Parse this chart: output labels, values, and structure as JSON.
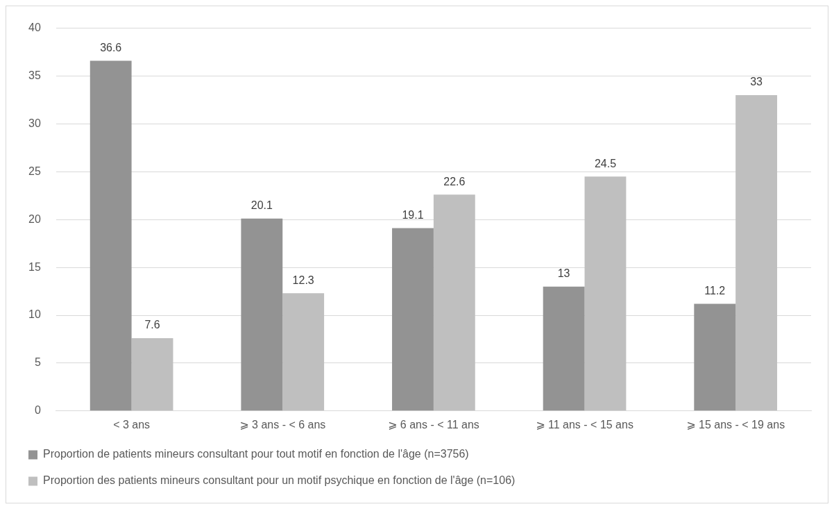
{
  "chart_data": {
    "type": "bar",
    "categories": [
      "< 3 ans",
      "⩾ 3 ans - < 6 ans",
      "⩾ 6 ans - < 11 ans",
      "⩾ 11 ans - < 15 ans",
      "⩾ 15 ans - < 19 ans"
    ],
    "series": [
      {
        "name": "Proportion de patients mineurs consultant pour tout motif en fonction de l'âge (n=3756)",
        "color": "#939393",
        "values": [
          36.6,
          20.1,
          19.1,
          13,
          11.2
        ]
      },
      {
        "name": "Proportion des patients mineurs consultant pour un motif psychique en fonction de l'âge (n=106)",
        "color": "#bfbfbf",
        "values": [
          7.6,
          12.3,
          22.6,
          24.5,
          33
        ]
      }
    ],
    "ylim": [
      0,
      40
    ],
    "yticks": [
      0,
      5,
      10,
      15,
      20,
      25,
      30,
      35,
      40
    ],
    "grid": "y",
    "legend": "bottom",
    "data_labels": true
  }
}
